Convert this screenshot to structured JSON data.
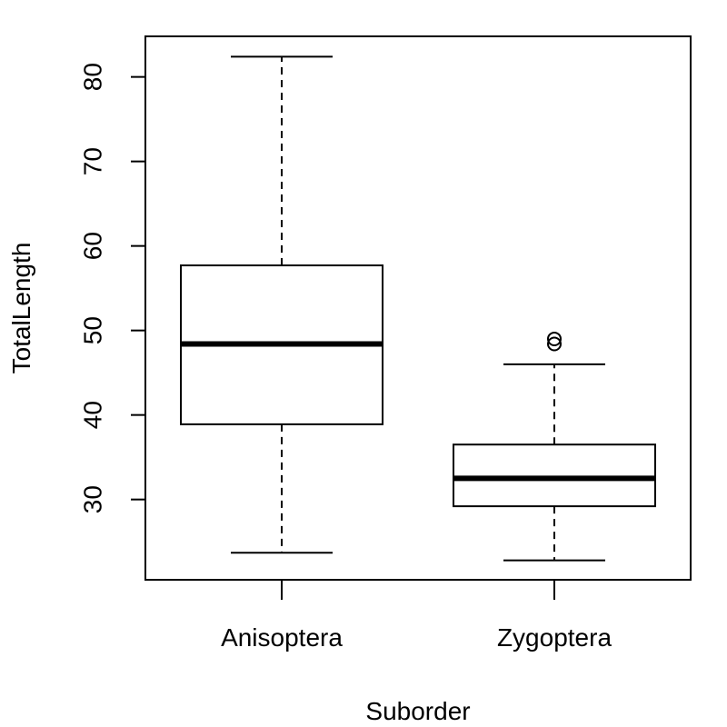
{
  "chart_data": {
    "type": "boxplot",
    "xlabel": "Suborder",
    "ylabel": "TotalLength",
    "categories": [
      "Anisoptera",
      "Zygoptera"
    ],
    "boxes": [
      {
        "category": "Anisoptera",
        "whisker_low": 23.7,
        "q1": 38.9,
        "median": 48.4,
        "q3": 57.7,
        "whisker_high": 82.4,
        "outliers": []
      },
      {
        "category": "Zygoptera",
        "whisker_low": 22.8,
        "q1": 29.2,
        "median": 32.5,
        "q3": 36.5,
        "whisker_high": 46.0,
        "outliers": [
          48.4,
          49.0
        ]
      }
    ],
    "yticks": [
      30,
      40,
      50,
      60,
      70,
      80
    ],
    "ytick_labels": [
      "30",
      "40",
      "50",
      "60",
      "70",
      "80"
    ],
    "ylim": [
      20.5,
      84.8
    ],
    "grid": false,
    "legend": "none",
    "colors": {
      "stroke": "#000000",
      "background": "#ffffff"
    }
  }
}
